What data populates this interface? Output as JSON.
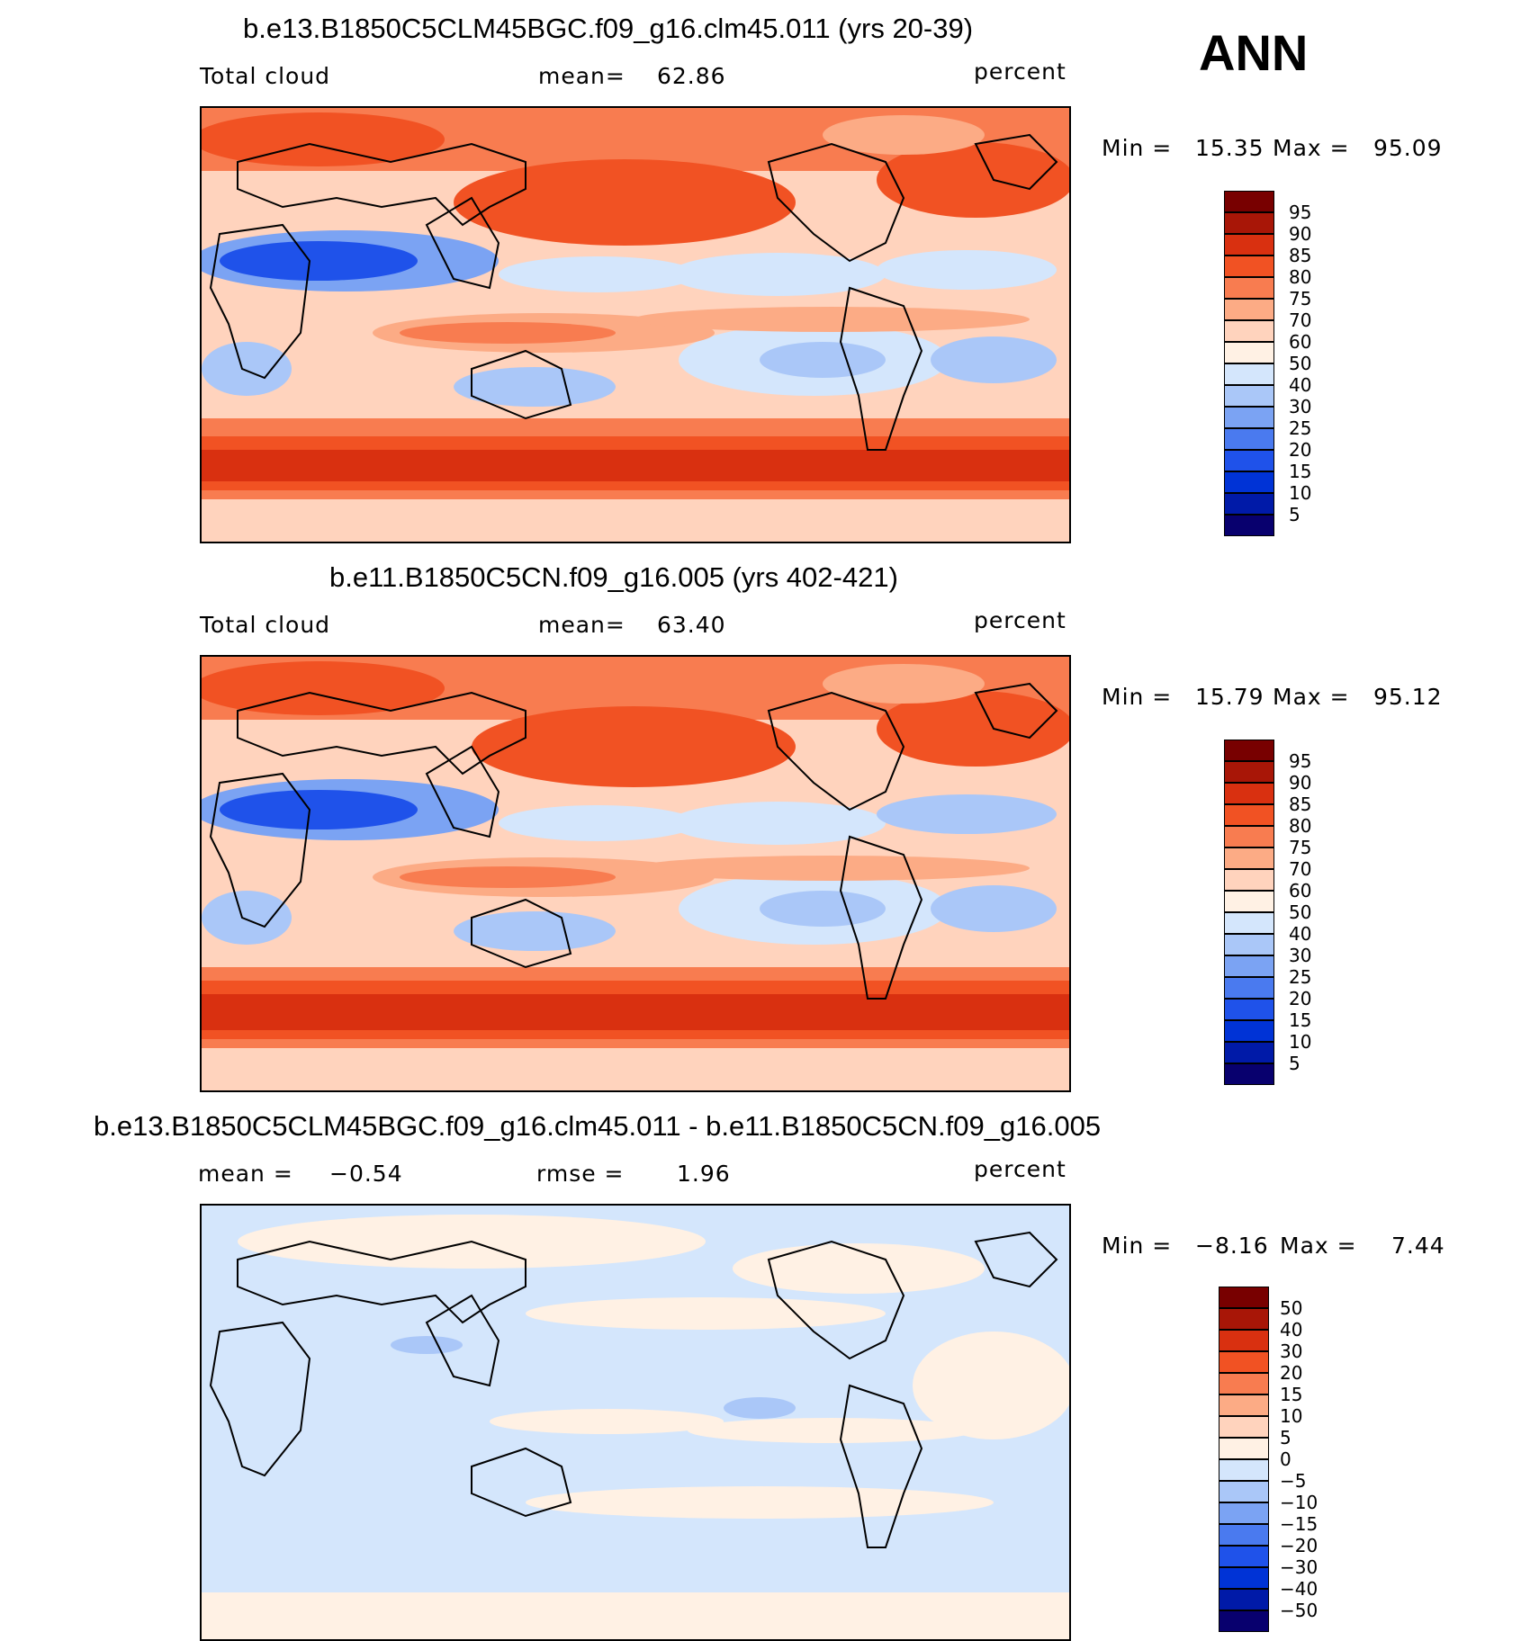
{
  "ann_label": "ANN",
  "colors": {
    "abs_scale": [
      "#08006e",
      "#001aa8",
      "#0033d6",
      "#1f52ea",
      "#4a7aef",
      "#7ba3f3",
      "#aac7f8",
      "#d4e6fc",
      "#fff1e4",
      "#ffd3bd",
      "#fcab85",
      "#f87c50",
      "#f15223",
      "#d93010",
      "#a81607",
      "#780000"
    ],
    "diff_scale": [
      "#08006e",
      "#001aa8",
      "#0033d6",
      "#1f52ea",
      "#4a7aef",
      "#7ba3f3",
      "#aac7f8",
      "#d4e6fc",
      "#fff1e4",
      "#ffd3bd",
      "#fcab85",
      "#f87c50",
      "#f15223",
      "#d93010",
      "#a81607",
      "#780000"
    ]
  },
  "panels": [
    {
      "title": "b.e13.B1850C5CLM45BGC.f09_g16.clm45.011 (yrs 20-39)",
      "left_label": "Total cloud",
      "mid_label": "mean=",
      "mid_value": "62.86",
      "units": "percent",
      "min_label": "Min =",
      "min_value": "15.35",
      "max_label": "Max =",
      "max_value": "95.09",
      "levels": [
        "95",
        "90",
        "85",
        "80",
        "75",
        "70",
        "60",
        "50",
        "40",
        "30",
        "25",
        "20",
        "15",
        "10",
        "5"
      ]
    },
    {
      "title": "b.e11.B1850C5CN.f09_g16.005 (yrs 402-421)",
      "left_label": "Total cloud",
      "mid_label": "mean=",
      "mid_value": "63.40",
      "units": "percent",
      "min_label": "Min =",
      "min_value": "15.79",
      "max_label": "Max =",
      "max_value": "95.12",
      "levels": [
        "95",
        "90",
        "85",
        "80",
        "75",
        "70",
        "60",
        "50",
        "40",
        "30",
        "25",
        "20",
        "15",
        "10",
        "5"
      ]
    },
    {
      "title": "b.e13.B1850C5CLM45BGC.f09_g16.clm45.011 - b.e11.B1850C5CN.f09_g16.005",
      "left_label": "mean =",
      "left_value": "−0.54",
      "mid_label": "rmse =",
      "mid_value": "1.96",
      "units": "percent",
      "min_label": "Min =",
      "min_value": "−8.16",
      "max_label": "Max =",
      "max_value": "7.44",
      "levels": [
        "50",
        "40",
        "30",
        "20",
        "15",
        "10",
        "5",
        "0",
        "−5",
        "−10",
        "−15",
        "−20",
        "−30",
        "−40",
        "−50"
      ]
    }
  ]
}
